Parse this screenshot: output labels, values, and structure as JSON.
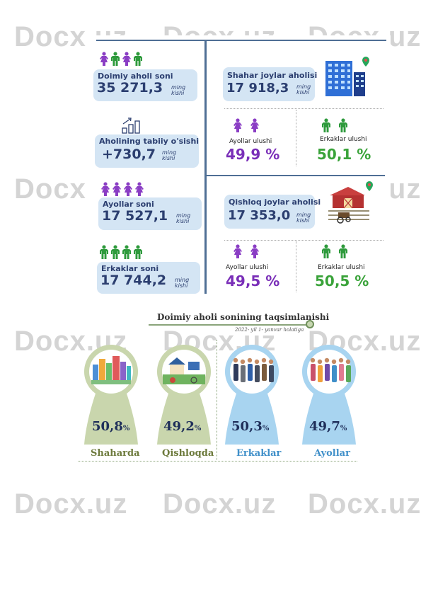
{
  "watermark": "Docx.uz",
  "infographic": {
    "left": {
      "permanent_population": {
        "label": "Doimiy aholi soni",
        "value": "35 271,3",
        "unit_top": "ming",
        "unit_bottom": "kishi"
      },
      "natural_growth": {
        "label": "Aholining tabiiy o'sishi",
        "value": "+730,7",
        "unit_top": "ming",
        "unit_bottom": "kishi"
      },
      "women": {
        "label": "Ayollar soni",
        "value": "17 527,1",
        "unit_top": "ming",
        "unit_bottom": "kishi"
      },
      "men": {
        "label": "Erkaklar soni",
        "value": "17 744,2",
        "unit_top": "ming",
        "unit_bottom": "kishi"
      }
    },
    "urban": {
      "label": "Shahar joylar aholisi",
      "value": "17 918,3",
      "unit_top": "ming",
      "unit_bottom": "kishi",
      "women_share_label": "Ayollar ulushi",
      "women_share": "49,9 %",
      "men_share_label": "Erkaklar ulushi",
      "men_share": "50,1 %"
    },
    "rural": {
      "label": "Qishloq joylar aholisi",
      "value": "17 353,0",
      "unit_top": "ming",
      "unit_bottom": "kishi",
      "women_share_label": "Ayollar ulushi",
      "women_share": "49,5 %",
      "men_share_label": "Erkaklar ulushi",
      "men_share": "50,5 %"
    }
  },
  "distribution": {
    "title": "Doimiy aholi sonining taqsimlanishi",
    "subtitle": "2022- yil 1- yanvar holatiga",
    "items": [
      {
        "value": "50,8",
        "suffix": "%",
        "label": "Shaharda",
        "color": "#c9d6ad",
        "label_color": "#6d7a3c"
      },
      {
        "value": "49,2",
        "suffix": "%",
        "label": "Qishloqda",
        "color": "#c9d6ad",
        "label_color": "#6d7a3c"
      },
      {
        "value": "50,3",
        "suffix": "%",
        "label": "Erkaklar",
        "color": "#a8d4f0",
        "label_color": "#3f8fc9"
      },
      {
        "value": "49,7",
        "suffix": "%",
        "label": "Ayollar",
        "color": "#a8d4f0",
        "label_color": "#3f8fc9"
      }
    ]
  },
  "colors": {
    "female": "#8a3dc4",
    "male": "#2e9a3c",
    "card": "#d4e5f4",
    "navy": "#2c3f70"
  }
}
